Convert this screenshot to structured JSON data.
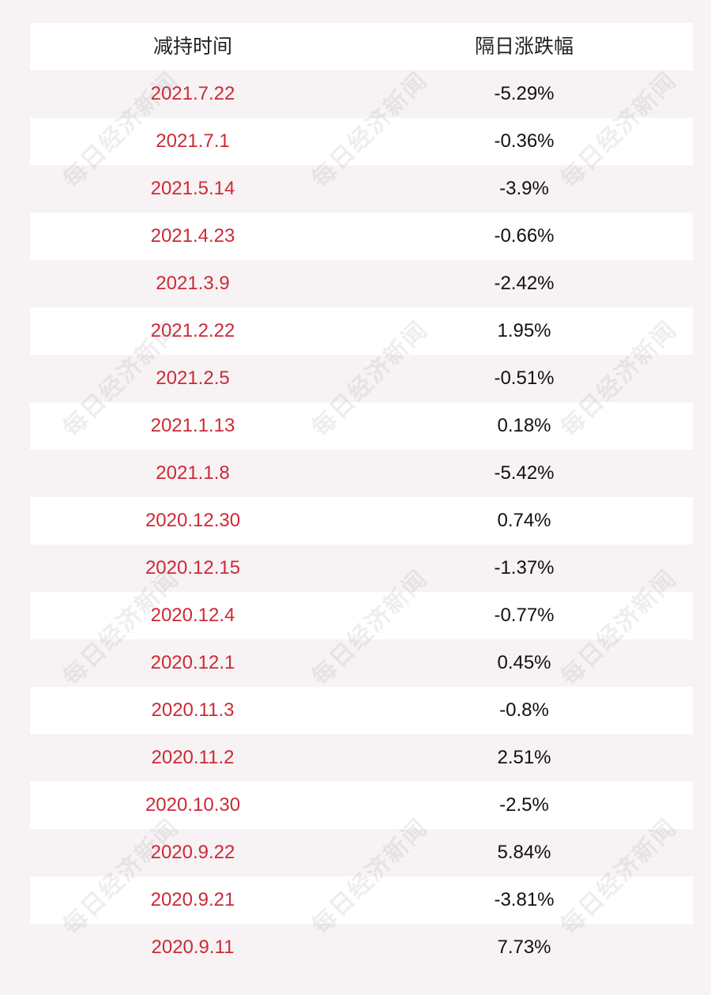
{
  "table": {
    "headers": {
      "date": "减持时间",
      "change": "隔日涨跌幅"
    },
    "rows": [
      {
        "date": "2021.7.22",
        "change": "-5.29%"
      },
      {
        "date": "2021.7.1",
        "change": "-0.36%"
      },
      {
        "date": "2021.5.14",
        "change": "-3.9%"
      },
      {
        "date": "2021.4.23",
        "change": "-0.66%"
      },
      {
        "date": "2021.3.9",
        "change": "-2.42%"
      },
      {
        "date": "2021.2.22",
        "change": "1.95%"
      },
      {
        "date": "2021.2.5",
        "change": "-0.51%"
      },
      {
        "date": "2021.1.13",
        "change": "0.18%"
      },
      {
        "date": "2021.1.8",
        "change": "-5.42%"
      },
      {
        "date": "2020.12.30",
        "change": "0.74%"
      },
      {
        "date": "2020.12.15",
        "change": "-1.37%"
      },
      {
        "date": "2020.12.4",
        "change": "-0.77%"
      },
      {
        "date": "2020.12.1",
        "change": "0.45%"
      },
      {
        "date": "2020.11.3",
        "change": "-0.8%"
      },
      {
        "date": "2020.11.2",
        "change": "2.51%"
      },
      {
        "date": "2020.10.30",
        "change": "-2.5%"
      },
      {
        "date": "2020.9.22",
        "change": "5.84%"
      },
      {
        "date": "2020.9.21",
        "change": "-3.81%"
      },
      {
        "date": "2020.9.11",
        "change": "7.73%"
      }
    ]
  },
  "watermark": {
    "text": "每日经济新闻"
  },
  "colors": {
    "date_text": "#cc2a36",
    "change_text": "#111111",
    "row_white": "#ffffff",
    "row_tinted": "#f7f2f4"
  }
}
